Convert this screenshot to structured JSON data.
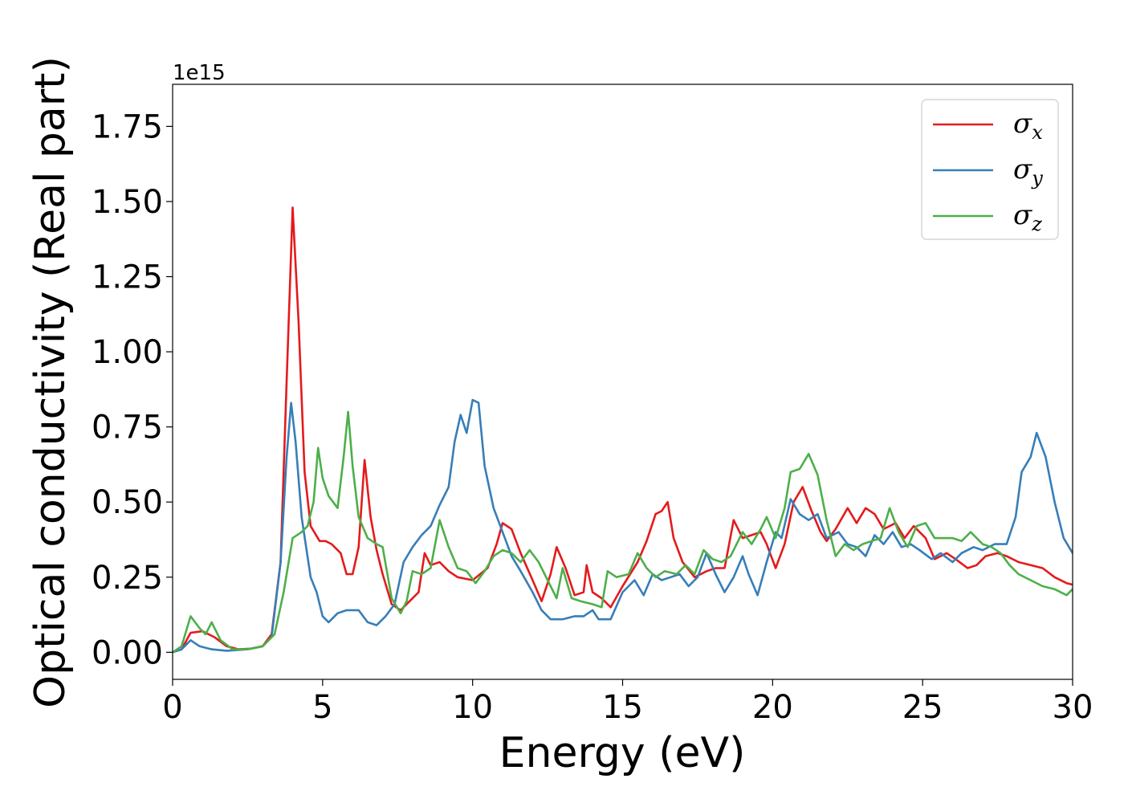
{
  "chart_data": {
    "type": "line",
    "xlabel": "Energy (eV)",
    "ylabel": "Optical conductivity (Real part)",
    "y_offset_label": "1e15",
    "xlim": [
      0,
      30
    ],
    "ylim": [
      -0.09,
      1.89
    ],
    "x_ticks": [
      0,
      5,
      10,
      15,
      20,
      25,
      30
    ],
    "x_tick_labels": [
      "0",
      "5",
      "10",
      "15",
      "20",
      "25",
      "30"
    ],
    "y_ticks": [
      0,
      0.25,
      0.5,
      0.75,
      1.0,
      1.25,
      1.5,
      1.75
    ],
    "y_tick_labels": [
      "0.00",
      "0.25",
      "0.50",
      "0.75",
      "1.00",
      "1.25",
      "1.50",
      "1.75"
    ],
    "grid": false,
    "legend_position": "top-right",
    "series": [
      {
        "name": "σ",
        "name_subscript": "x",
        "color": "#e41a1c",
        "points": [
          [
            0,
            0
          ],
          [
            0.3,
            0.01
          ],
          [
            0.6,
            0.065
          ],
          [
            1.0,
            0.07
          ],
          [
            1.4,
            0.05
          ],
          [
            1.8,
            0.02
          ],
          [
            2.2,
            0.01
          ],
          [
            2.6,
            0.012
          ],
          [
            3.0,
            0.02
          ],
          [
            3.3,
            0.06
          ],
          [
            3.6,
            0.3
          ],
          [
            3.8,
            0.9
          ],
          [
            4.0,
            1.48
          ],
          [
            4.2,
            1.1
          ],
          [
            4.4,
            0.6
          ],
          [
            4.6,
            0.42
          ],
          [
            4.9,
            0.37
          ],
          [
            5.1,
            0.37
          ],
          [
            5.3,
            0.36
          ],
          [
            5.6,
            0.33
          ],
          [
            5.8,
            0.26
          ],
          [
            6.0,
            0.26
          ],
          [
            6.2,
            0.35
          ],
          [
            6.4,
            0.64
          ],
          [
            6.6,
            0.45
          ],
          [
            6.8,
            0.34
          ],
          [
            7.0,
            0.26
          ],
          [
            7.3,
            0.16
          ],
          [
            7.6,
            0.14
          ],
          [
            7.9,
            0.17
          ],
          [
            8.2,
            0.2
          ],
          [
            8.4,
            0.33
          ],
          [
            8.6,
            0.29
          ],
          [
            8.9,
            0.3
          ],
          [
            9.2,
            0.27
          ],
          [
            9.5,
            0.25
          ],
          [
            10.0,
            0.24
          ],
          [
            10.5,
            0.28
          ],
          [
            10.8,
            0.36
          ],
          [
            11.0,
            0.43
          ],
          [
            11.3,
            0.41
          ],
          [
            11.6,
            0.33
          ],
          [
            12.0,
            0.24
          ],
          [
            12.3,
            0.17
          ],
          [
            12.6,
            0.26
          ],
          [
            12.8,
            0.35
          ],
          [
            13.1,
            0.28
          ],
          [
            13.4,
            0.19
          ],
          [
            13.7,
            0.2
          ],
          [
            13.8,
            0.29
          ],
          [
            14.0,
            0.2
          ],
          [
            14.3,
            0.18
          ],
          [
            14.6,
            0.15
          ],
          [
            15.0,
            0.22
          ],
          [
            15.5,
            0.3
          ],
          [
            15.8,
            0.37
          ],
          [
            16.1,
            0.46
          ],
          [
            16.3,
            0.47
          ],
          [
            16.5,
            0.5
          ],
          [
            16.7,
            0.38
          ],
          [
            17.0,
            0.3
          ],
          [
            17.4,
            0.25
          ],
          [
            17.8,
            0.27
          ],
          [
            18.1,
            0.28
          ],
          [
            18.4,
            0.28
          ],
          [
            18.7,
            0.44
          ],
          [
            19.0,
            0.38
          ],
          [
            19.3,
            0.39
          ],
          [
            19.6,
            0.4
          ],
          [
            19.8,
            0.36
          ],
          [
            20.1,
            0.28
          ],
          [
            20.4,
            0.36
          ],
          [
            20.7,
            0.5
          ],
          [
            21.0,
            0.55
          ],
          [
            21.3,
            0.47
          ],
          [
            21.6,
            0.4
          ],
          [
            21.8,
            0.37
          ],
          [
            22.1,
            0.41
          ],
          [
            22.5,
            0.48
          ],
          [
            22.8,
            0.43
          ],
          [
            23.1,
            0.48
          ],
          [
            23.4,
            0.46
          ],
          [
            23.7,
            0.41
          ],
          [
            24.1,
            0.43
          ],
          [
            24.4,
            0.38
          ],
          [
            24.7,
            0.42
          ],
          [
            25.1,
            0.38
          ],
          [
            25.4,
            0.31
          ],
          [
            25.8,
            0.33
          ],
          [
            26.1,
            0.31
          ],
          [
            26.5,
            0.28
          ],
          [
            26.8,
            0.29
          ],
          [
            27.1,
            0.32
          ],
          [
            27.5,
            0.33
          ],
          [
            27.8,
            0.32
          ],
          [
            28.2,
            0.3
          ],
          [
            28.6,
            0.29
          ],
          [
            29.0,
            0.28
          ],
          [
            29.4,
            0.25
          ],
          [
            29.8,
            0.23
          ],
          [
            30.0,
            0.225
          ]
        ]
      },
      {
        "name": "σ",
        "name_subscript": "y",
        "color": "#377eb8",
        "points": [
          [
            0,
            0
          ],
          [
            0.3,
            0.01
          ],
          [
            0.6,
            0.04
          ],
          [
            0.9,
            0.02
          ],
          [
            1.3,
            0.01
          ],
          [
            1.8,
            0.005
          ],
          [
            2.5,
            0.01
          ],
          [
            3.0,
            0.02
          ],
          [
            3.3,
            0.05
          ],
          [
            3.6,
            0.3
          ],
          [
            3.8,
            0.65
          ],
          [
            3.95,
            0.83
          ],
          [
            4.1,
            0.7
          ],
          [
            4.3,
            0.45
          ],
          [
            4.6,
            0.25
          ],
          [
            4.8,
            0.2
          ],
          [
            5.0,
            0.12
          ],
          [
            5.2,
            0.1
          ],
          [
            5.5,
            0.13
          ],
          [
            5.8,
            0.14
          ],
          [
            6.2,
            0.14
          ],
          [
            6.5,
            0.1
          ],
          [
            6.8,
            0.09
          ],
          [
            7.1,
            0.12
          ],
          [
            7.4,
            0.16
          ],
          [
            7.7,
            0.3
          ],
          [
            8.0,
            0.35
          ],
          [
            8.3,
            0.39
          ],
          [
            8.6,
            0.42
          ],
          [
            8.9,
            0.49
          ],
          [
            9.2,
            0.55
          ],
          [
            9.4,
            0.7
          ],
          [
            9.6,
            0.79
          ],
          [
            9.8,
            0.73
          ],
          [
            10.0,
            0.84
          ],
          [
            10.2,
            0.83
          ],
          [
            10.4,
            0.62
          ],
          [
            10.7,
            0.48
          ],
          [
            11.0,
            0.4
          ],
          [
            11.3,
            0.32
          ],
          [
            11.6,
            0.27
          ],
          [
            12.0,
            0.2
          ],
          [
            12.3,
            0.14
          ],
          [
            12.6,
            0.11
          ],
          [
            13.0,
            0.11
          ],
          [
            13.4,
            0.12
          ],
          [
            13.7,
            0.12
          ],
          [
            14.0,
            0.14
          ],
          [
            14.2,
            0.11
          ],
          [
            14.6,
            0.11
          ],
          [
            15.0,
            0.2
          ],
          [
            15.4,
            0.24
          ],
          [
            15.7,
            0.19
          ],
          [
            16.0,
            0.26
          ],
          [
            16.3,
            0.24
          ],
          [
            16.6,
            0.25
          ],
          [
            16.9,
            0.26
          ],
          [
            17.2,
            0.22
          ],
          [
            17.5,
            0.25
          ],
          [
            17.8,
            0.33
          ],
          [
            18.1,
            0.26
          ],
          [
            18.4,
            0.2
          ],
          [
            18.7,
            0.25
          ],
          [
            19.0,
            0.32
          ],
          [
            19.2,
            0.26
          ],
          [
            19.5,
            0.19
          ],
          [
            19.8,
            0.3
          ],
          [
            20.1,
            0.4
          ],
          [
            20.3,
            0.38
          ],
          [
            20.6,
            0.51
          ],
          [
            20.9,
            0.46
          ],
          [
            21.2,
            0.44
          ],
          [
            21.5,
            0.46
          ],
          [
            21.8,
            0.38
          ],
          [
            22.2,
            0.4
          ],
          [
            22.5,
            0.36
          ],
          [
            22.8,
            0.35
          ],
          [
            23.1,
            0.32
          ],
          [
            23.4,
            0.39
          ],
          [
            23.7,
            0.36
          ],
          [
            24.0,
            0.4
          ],
          [
            24.3,
            0.35
          ],
          [
            24.6,
            0.36
          ],
          [
            24.9,
            0.34
          ],
          [
            25.3,
            0.31
          ],
          [
            25.6,
            0.33
          ],
          [
            26.0,
            0.3
          ],
          [
            26.3,
            0.33
          ],
          [
            26.7,
            0.35
          ],
          [
            27.0,
            0.34
          ],
          [
            27.4,
            0.36
          ],
          [
            27.8,
            0.36
          ],
          [
            28.1,
            0.45
          ],
          [
            28.3,
            0.6
          ],
          [
            28.6,
            0.65
          ],
          [
            28.8,
            0.73
          ],
          [
            29.1,
            0.65
          ],
          [
            29.4,
            0.5
          ],
          [
            29.7,
            0.38
          ],
          [
            30.0,
            0.33
          ]
        ]
      },
      {
        "name": "σ",
        "name_subscript": "z",
        "color": "#4daf4a",
        "points": [
          [
            0,
            0
          ],
          [
            0.3,
            0.02
          ],
          [
            0.6,
            0.12
          ],
          [
            0.9,
            0.08
          ],
          [
            1.1,
            0.06
          ],
          [
            1.3,
            0.1
          ],
          [
            1.6,
            0.04
          ],
          [
            2.0,
            0.01
          ],
          [
            2.5,
            0.01
          ],
          [
            3.0,
            0.02
          ],
          [
            3.4,
            0.06
          ],
          [
            3.7,
            0.2
          ],
          [
            4.0,
            0.38
          ],
          [
            4.3,
            0.4
          ],
          [
            4.5,
            0.42
          ],
          [
            4.7,
            0.5
          ],
          [
            4.85,
            0.68
          ],
          [
            5.0,
            0.58
          ],
          [
            5.2,
            0.52
          ],
          [
            5.5,
            0.48
          ],
          [
            5.7,
            0.65
          ],
          [
            5.85,
            0.8
          ],
          [
            6.0,
            0.62
          ],
          [
            6.2,
            0.45
          ],
          [
            6.5,
            0.38
          ],
          [
            6.8,
            0.36
          ],
          [
            7.0,
            0.35
          ],
          [
            7.3,
            0.18
          ],
          [
            7.6,
            0.13
          ],
          [
            7.8,
            0.17
          ],
          [
            8.0,
            0.27
          ],
          [
            8.3,
            0.26
          ],
          [
            8.6,
            0.28
          ],
          [
            8.9,
            0.44
          ],
          [
            9.2,
            0.35
          ],
          [
            9.5,
            0.28
          ],
          [
            9.8,
            0.27
          ],
          [
            10.1,
            0.23
          ],
          [
            10.4,
            0.27
          ],
          [
            10.7,
            0.32
          ],
          [
            11.0,
            0.34
          ],
          [
            11.3,
            0.33
          ],
          [
            11.6,
            0.3
          ],
          [
            11.9,
            0.34
          ],
          [
            12.2,
            0.3
          ],
          [
            12.5,
            0.24
          ],
          [
            12.8,
            0.18
          ],
          [
            13.0,
            0.28
          ],
          [
            13.3,
            0.18
          ],
          [
            13.6,
            0.17
          ],
          [
            14.0,
            0.16
          ],
          [
            14.3,
            0.15
          ],
          [
            14.5,
            0.27
          ],
          [
            14.8,
            0.25
          ],
          [
            15.2,
            0.26
          ],
          [
            15.5,
            0.33
          ],
          [
            15.8,
            0.28
          ],
          [
            16.1,
            0.25
          ],
          [
            16.4,
            0.27
          ],
          [
            16.8,
            0.26
          ],
          [
            17.1,
            0.29
          ],
          [
            17.4,
            0.26
          ],
          [
            17.7,
            0.34
          ],
          [
            18.0,
            0.31
          ],
          [
            18.3,
            0.3
          ],
          [
            18.6,
            0.32
          ],
          [
            19.0,
            0.4
          ],
          [
            19.3,
            0.36
          ],
          [
            19.6,
            0.41
          ],
          [
            19.8,
            0.45
          ],
          [
            20.1,
            0.38
          ],
          [
            20.4,
            0.48
          ],
          [
            20.6,
            0.6
          ],
          [
            20.9,
            0.61
          ],
          [
            21.2,
            0.66
          ],
          [
            21.5,
            0.59
          ],
          [
            21.8,
            0.44
          ],
          [
            22.1,
            0.32
          ],
          [
            22.4,
            0.36
          ],
          [
            22.7,
            0.34
          ],
          [
            23.0,
            0.36
          ],
          [
            23.3,
            0.37
          ],
          [
            23.6,
            0.38
          ],
          [
            23.9,
            0.48
          ],
          [
            24.2,
            0.4
          ],
          [
            24.5,
            0.35
          ],
          [
            24.8,
            0.42
          ],
          [
            25.1,
            0.43
          ],
          [
            25.4,
            0.38
          ],
          [
            25.7,
            0.38
          ],
          [
            26.0,
            0.38
          ],
          [
            26.3,
            0.37
          ],
          [
            26.6,
            0.4
          ],
          [
            27.0,
            0.36
          ],
          [
            27.3,
            0.35
          ],
          [
            27.6,
            0.33
          ],
          [
            27.9,
            0.29
          ],
          [
            28.2,
            0.26
          ],
          [
            28.6,
            0.24
          ],
          [
            29.0,
            0.22
          ],
          [
            29.4,
            0.21
          ],
          [
            29.8,
            0.19
          ],
          [
            30.0,
            0.21
          ]
        ]
      }
    ]
  }
}
